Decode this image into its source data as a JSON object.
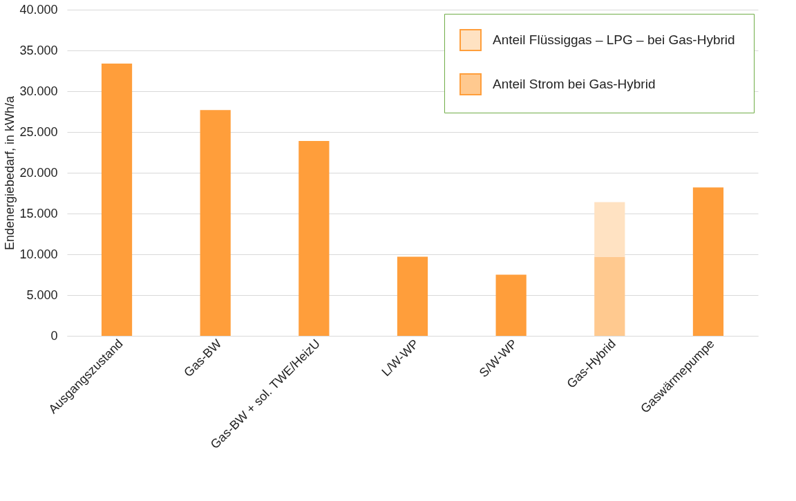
{
  "chart_data": {
    "type": "bar",
    "ylabel": "Endenergiebedarf, in kWh/a",
    "categories": [
      "Ausgangszustand",
      "Gas-BW",
      "Gas-BW + sol. TWE/HeizU",
      "L/W-WP",
      "S/W-WP",
      "Gas-Hybrid",
      "Gaswärmepumpe"
    ],
    "stacked": true,
    "series": [
      {
        "color": "#ff9e3b",
        "values": [
          33400,
          27700,
          23900,
          9700,
          7500,
          null,
          18200
        ]
      },
      {
        "name": "Anteil Strom bei Gas-Hybrid",
        "color": "#ffc98f",
        "values": [
          null,
          null,
          null,
          null,
          null,
          9700,
          null
        ]
      },
      {
        "name": "Anteil Flüssiggas – LPG –  bei Gas-Hybrid",
        "color": "#ffe2c2",
        "values": [
          null,
          null,
          null,
          null,
          null,
          6700,
          null
        ]
      }
    ],
    "ylim": [
      0,
      40000
    ],
    "yticks": [
      {
        "value": 0,
        "label": "0"
      },
      {
        "value": 5000,
        "label": "5.000"
      },
      {
        "value": 10000,
        "label": "10.000"
      },
      {
        "value": 15000,
        "label": "15.000"
      },
      {
        "value": 20000,
        "label": "20.000"
      },
      {
        "value": 25000,
        "label": "25.000"
      },
      {
        "value": 30000,
        "label": "30.000"
      },
      {
        "value": 35000,
        "label": "35.000"
      },
      {
        "value": 40000,
        "label": "40.000"
      }
    ],
    "grid": "y",
    "legend": "top right"
  }
}
